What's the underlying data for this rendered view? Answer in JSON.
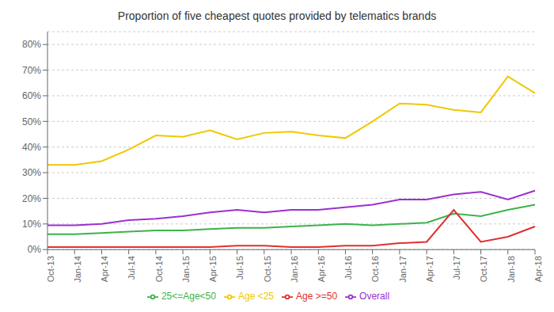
{
  "chart_data": {
    "type": "line",
    "title": "Proportion of five cheapest quotes provided by telematics brands",
    "categories": [
      "Oct-13",
      "Jan-14",
      "Apr-14",
      "Jul-14",
      "Oct-14",
      "Jan-15",
      "Apr-15",
      "Jul-15",
      "Oct-15",
      "Jan-16",
      "Apr-16",
      "Jul-16",
      "Oct-16",
      "Jan-17",
      "Apr-17",
      "Jul-17",
      "Oct-17",
      "Jan-18",
      "Apr-18"
    ],
    "series": [
      {
        "name": "Overall",
        "color": "#9b30d0",
        "values": [
          0.095,
          0.095,
          0.1,
          0.115,
          0.12,
          0.13,
          0.145,
          0.155,
          0.145,
          0.155,
          0.155,
          0.165,
          0.175,
          0.195,
          0.195,
          0.215,
          0.225,
          0.195,
          0.23
        ]
      },
      {
        "name": "Age <25",
        "color": "#f0c800",
        "values": [
          0.33,
          0.33,
          0.345,
          0.39,
          0.445,
          0.44,
          0.465,
          0.43,
          0.455,
          0.46,
          0.445,
          0.435,
          0.5,
          0.57,
          0.565,
          0.545,
          0.535,
          0.675,
          0.61
        ]
      },
      {
        "name": "25<=Age<50",
        "color": "#3cb34a",
        "values": [
          0.06,
          0.06,
          0.065,
          0.07,
          0.075,
          0.075,
          0.08,
          0.085,
          0.085,
          0.09,
          0.095,
          0.1,
          0.095,
          0.1,
          0.105,
          0.14,
          0.13,
          0.155,
          0.175
        ]
      },
      {
        "name": "Age >=50",
        "color": "#e03030",
        "values": [
          0.01,
          0.01,
          0.01,
          0.01,
          0.01,
          0.01,
          0.01,
          0.015,
          0.015,
          0.01,
          0.01,
          0.015,
          0.015,
          0.025,
          0.03,
          0.155,
          0.03,
          0.05,
          0.09
        ]
      }
    ],
    "ylim": [
      0.0,
      0.85
    ],
    "yticks": [
      {
        "value": 0.0,
        "label": "0%"
      },
      {
        "value": 0.1,
        "label": "10%"
      },
      {
        "value": 0.2,
        "label": "20%"
      },
      {
        "value": 0.3,
        "label": "30%"
      },
      {
        "value": 0.4,
        "label": "40%"
      },
      {
        "value": 0.5,
        "label": "50%"
      },
      {
        "value": 0.6,
        "label": "60%"
      },
      {
        "value": 0.7,
        "label": "70%"
      },
      {
        "value": 0.8,
        "label": "80%"
      }
    ],
    "grid": true,
    "legend": "bottom"
  }
}
